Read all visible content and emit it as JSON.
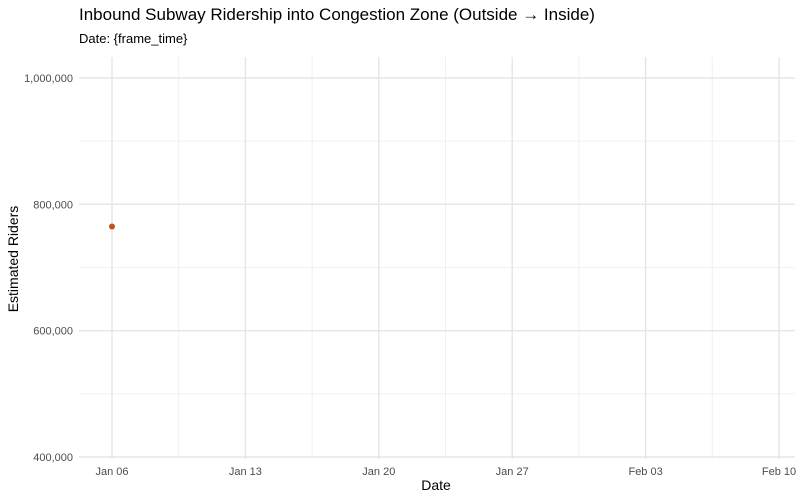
{
  "chart_data": {
    "type": "scatter",
    "title": "Inbound Subway Ridership into Congestion Zone (Outside → Inside)",
    "subtitle": "Date: {frame_time}",
    "xlabel": "Date",
    "ylabel": "Estimated Riders",
    "xlim": [
      "2025-01-05",
      "2025-02-10"
    ],
    "ylim": [
      400000,
      1000000
    ],
    "x_ticks": [
      "2025-01-06",
      "2025-01-13",
      "2025-01-20",
      "2025-01-27",
      "2025-02-03",
      "2025-02-10"
    ],
    "x_tick_labels": [
      "Jan 06",
      "Jan 13",
      "Jan 20",
      "Jan 27",
      "Feb 03",
      "Feb 10"
    ],
    "y_ticks": [
      400000,
      600000,
      800000,
      1000000
    ],
    "y_tick_labels": [
      "400,000",
      "600,000",
      "800,000",
      "1,000,000"
    ],
    "grid": true,
    "points": [
      {
        "x": "2025-01-06",
        "y": 765000
      }
    ],
    "colors": {
      "point": "#c2521c",
      "grid_major": "#e5e5e5",
      "grid_minor": "#f0f0f0"
    }
  }
}
